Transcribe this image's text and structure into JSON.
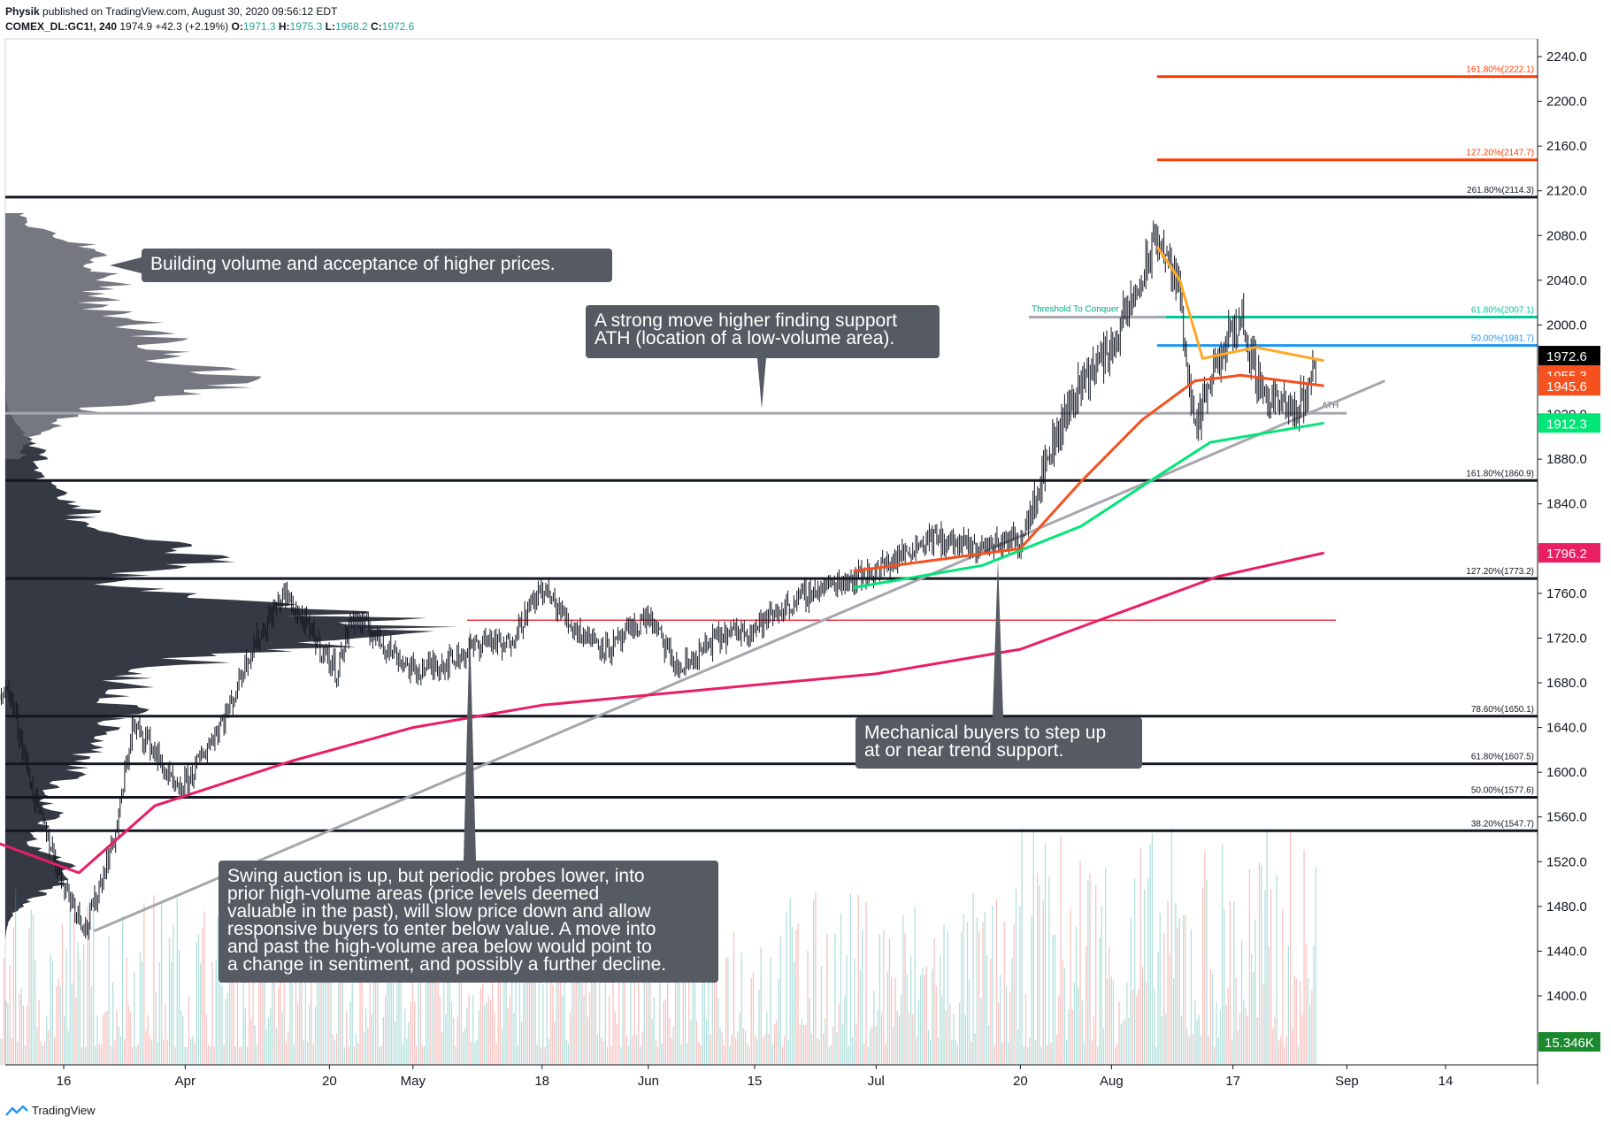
{
  "header": {
    "author": "Physik",
    "published": "published on TradingView.com, August 30, 2020 09:56:12 EDT",
    "symbol": "COMEX_DL:GC1!, 240",
    "last": "1974.9",
    "change": "+42.3 (+2.19%)",
    "ohlc": [
      {
        "k": "O:",
        "v": "1971.3"
      },
      {
        "k": "H:",
        "v": "1975.3"
      },
      {
        "k": "L:",
        "v": "1968.2"
      },
      {
        "k": "C:",
        "v": "1972.6"
      }
    ]
  },
  "colors": {
    "bull": "#26a69a",
    "bear": "#ef5350",
    "sma_pink": "#e91e63",
    "ema_red": "#f4511e",
    "ema_green": "#00e676",
    "ema_orange": "#ffa726",
    "fib_red": "#ff3d00",
    "fib_teal": "#00c49a",
    "fib_blue": "#2196f3",
    "trend": "#a5a7ad",
    "note_bg": "#555a63"
  },
  "footer": {
    "brand": "TradingView",
    "logo": "tradingview-logo"
  },
  "chart_data": {
    "type": "candlestick",
    "symbol": "COMEX_DL:GC1!",
    "interval": "240",
    "ylim": [
      1360,
      2250
    ],
    "yticks": [
      1400,
      1440,
      1480,
      1520,
      1560,
      1600,
      1640,
      1680,
      1720,
      1760,
      1800,
      1840,
      1880,
      1920,
      1960,
      2000,
      2040,
      2080,
      2120,
      2160,
      2200,
      2240
    ],
    "x_range": [
      "2020-03-06",
      "2020-10-02"
    ],
    "xticks": [
      {
        "date": "2020-03-16",
        "label": "16"
      },
      {
        "date": "2020-04-01",
        "label": "Apr"
      },
      {
        "date": "2020-04-20",
        "label": "20"
      },
      {
        "date": "2020-05-01",
        "label": "May"
      },
      {
        "date": "2020-05-18",
        "label": "18"
      },
      {
        "date": "2020-06-01",
        "label": "Jun"
      },
      {
        "date": "2020-06-15",
        "label": "15"
      },
      {
        "date": "2020-07-01",
        "label": "Jul"
      },
      {
        "date": "2020-07-20",
        "label": "20"
      },
      {
        "date": "2020-08-01",
        "label": "Aug"
      },
      {
        "date": "2020-08-17",
        "label": "17"
      },
      {
        "date": "2020-09-01",
        "label": "Sep"
      },
      {
        "date": "2020-09-14",
        "label": "14"
      }
    ],
    "price_path": [
      [
        "2020-03-06",
        1680
      ],
      [
        "2020-03-09",
        1670
      ],
      [
        "2020-03-12",
        1580
      ],
      [
        "2020-03-16",
        1500
      ],
      [
        "2020-03-19",
        1460
      ],
      [
        "2020-03-23",
        1550
      ],
      [
        "2020-03-25",
        1640
      ],
      [
        "2020-03-27",
        1630
      ],
      [
        "2020-03-31",
        1580
      ],
      [
        "2020-04-02",
        1600
      ],
      [
        "2020-04-07",
        1660
      ],
      [
        "2020-04-09",
        1700
      ],
      [
        "2020-04-14",
        1760
      ],
      [
        "2020-04-16",
        1740
      ],
      [
        "2020-04-21",
        1690
      ],
      [
        "2020-04-23",
        1740
      ],
      [
        "2020-04-28",
        1710
      ],
      [
        "2020-05-01",
        1690
      ],
      [
        "2020-05-06",
        1700
      ],
      [
        "2020-05-11",
        1720
      ],
      [
        "2020-05-13",
        1710
      ],
      [
        "2020-05-18",
        1765
      ],
      [
        "2020-05-22",
        1730
      ],
      [
        "2020-05-27",
        1710
      ],
      [
        "2020-06-01",
        1740
      ],
      [
        "2020-06-05",
        1690
      ],
      [
        "2020-06-10",
        1720
      ],
      [
        "2020-06-15",
        1730
      ],
      [
        "2020-06-22",
        1760
      ],
      [
        "2020-06-26",
        1770
      ],
      [
        "2020-07-01",
        1780
      ],
      [
        "2020-07-08",
        1810
      ],
      [
        "2020-07-14",
        1800
      ],
      [
        "2020-07-20",
        1810
      ],
      [
        "2020-07-24",
        1890
      ],
      [
        "2020-07-28",
        1950
      ],
      [
        "2020-08-01",
        1980
      ],
      [
        "2020-08-05",
        2040
      ],
      [
        "2020-08-07",
        2080
      ],
      [
        "2020-08-10",
        2030
      ],
      [
        "2020-08-12",
        1900
      ],
      [
        "2020-08-14",
        1950
      ],
      [
        "2020-08-18",
        2010
      ],
      [
        "2020-08-19",
        1980
      ],
      [
        "2020-08-21",
        1940
      ],
      [
        "2020-08-25",
        1920
      ],
      [
        "2020-08-27",
        1945
      ],
      [
        "2020-08-28",
        1972.6
      ]
    ],
    "sma_pink": [
      [
        "2020-03-06",
        1540
      ],
      [
        "2020-03-18",
        1510
      ],
      [
        "2020-03-28",
        1570
      ],
      [
        "2020-04-15",
        1610
      ],
      [
        "2020-05-01",
        1640
      ],
      [
        "2020-05-18",
        1660
      ],
      [
        "2020-06-15",
        1678
      ],
      [
        "2020-07-01",
        1688
      ],
      [
        "2020-07-20",
        1710
      ],
      [
        "2020-08-01",
        1740
      ],
      [
        "2020-08-15",
        1775
      ],
      [
        "2020-08-29",
        1796.2
      ]
    ],
    "ema_red": [
      [
        "2020-06-28",
        1780
      ],
      [
        "2020-07-20",
        1800
      ],
      [
        "2020-07-28",
        1860
      ],
      [
        "2020-08-05",
        1915
      ],
      [
        "2020-08-12",
        1950
      ],
      [
        "2020-08-18",
        1955
      ],
      [
        "2020-08-29",
        1945.6
      ]
    ],
    "ema_green": [
      [
        "2020-06-28",
        1765
      ],
      [
        "2020-07-15",
        1785
      ],
      [
        "2020-07-28",
        1820
      ],
      [
        "2020-08-06",
        1860
      ],
      [
        "2020-08-14",
        1895
      ],
      [
        "2020-08-29",
        1912.3
      ]
    ],
    "ema_orange": [
      [
        "2020-08-07",
        2070
      ],
      [
        "2020-08-10",
        2040
      ],
      [
        "2020-08-13",
        1970
      ],
      [
        "2020-08-20",
        1980
      ],
      [
        "2020-08-29",
        1968
      ]
    ],
    "volume": {
      "last_label": "15.346K"
    },
    "price_labels": [
      {
        "value": 1972.6,
        "text": "1972.6",
        "bg": "#000000"
      },
      {
        "value": 1955.3,
        "text": "1955.3",
        "bg": "#f4511e"
      },
      {
        "value": 1945.6,
        "text": "1945.6",
        "bg": "#f4511e"
      },
      {
        "value": 1912.3,
        "text": "1912.3",
        "bg": "#00e676"
      },
      {
        "value": 1796.2,
        "text": "1796.2",
        "bg": "#e91e63"
      }
    ],
    "levels": [
      {
        "value": 2222.1,
        "label": "161.80%(2222.1)",
        "color": "#ff3d00",
        "from": "2020-08-07"
      },
      {
        "value": 2147.7,
        "label": "127.20%(2147.7)",
        "color": "#ff3d00",
        "from": "2020-08-07"
      },
      {
        "value": 2114.3,
        "label": "261.80%(2114.3)",
        "color": "#131722",
        "from": "2020-03-06"
      },
      {
        "value": 2007.1,
        "label": "61.80%(2007.1)",
        "color": "#00c49a",
        "from": "2020-08-07"
      },
      {
        "value": 1981.7,
        "label": "50.00%(1981.7)",
        "color": "#2196f3",
        "from": "2020-08-07"
      },
      {
        "value": 1860.9,
        "label": "161.80%(1860.9)",
        "color": "#131722",
        "from": "2020-03-06"
      },
      {
        "value": 1773.2,
        "label": "127.20%(1773.2)",
        "color": "#131722",
        "from": "2020-03-06"
      },
      {
        "value": 1650.1,
        "label": "78.60%(1650.1)",
        "color": "#131722",
        "from": "2020-03-06"
      },
      {
        "value": 1607.5,
        "label": "61.80%(1607.5)",
        "color": "#131722",
        "from": "2020-03-06"
      },
      {
        "value": 1577.6,
        "label": "50.00%(1577.6)",
        "color": "#131722",
        "from": "2020-03-06"
      },
      {
        "value": 1547.7,
        "label": "38.20%(1547.7)",
        "color": "#131722",
        "from": "2020-03-06"
      }
    ],
    "ath_line": {
      "value": 1921,
      "label": "ATH"
    },
    "threshold_line": {
      "value": 2007,
      "label": "Threshold To Conquer"
    },
    "red_line": {
      "value": 1736
    },
    "trendline": [
      [
        "2020-03-20",
        1458
      ],
      [
        "2020-09-06",
        1950
      ]
    ],
    "annotations": [
      {
        "id": "volume-note",
        "text": "Building volume and acceptance of higher prices."
      },
      {
        "id": "ath-note",
        "text": "A strong move higher finding support\nATH (location of a low-volume area)."
      },
      {
        "id": "mech-note",
        "text": "Mechanical buyers to step up\nat or near trend support."
      },
      {
        "id": "swing-note",
        "text": "Swing auction is up, but periodic probes lower, into\nprior high-volume areas (price levels deemed\nvaluable in the past), will slow price down and allow\nresponsive buyers to enter below value. A move into\nand past the high-volume area below would point to\na change in sentiment, and possibly a further decline."
      }
    ]
  }
}
